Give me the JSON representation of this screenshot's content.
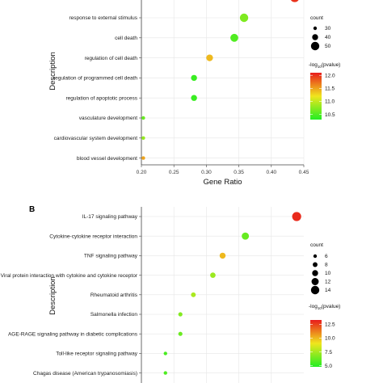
{
  "colors": {
    "panel_bg": "#ffffff",
    "grid": "#e6e6e6",
    "axis": "#444444",
    "low": "#22ee22",
    "mid": "#f0e61e",
    "high": "#e81c1c"
  },
  "chart_data": [
    {
      "panel": "",
      "type": "scatter",
      "xlabel": "Gene Ratio",
      "ylabel": "Description",
      "xlim": [
        0.2,
        0.45
      ],
      "xticks": [
        "0.20",
        "0.25",
        "0.30",
        "0.35",
        "0.40",
        "0.45"
      ],
      "xtick_values": [
        0.2,
        0.25,
        0.3,
        0.35,
        0.4,
        0.45
      ],
      "categories": [
        "response to external stimulus",
        "cell death",
        "regulation of cell death",
        "regulation of programmed cell death",
        "regulation of apoptotic process",
        "vasculature development",
        "cardiovascular system development",
        "blood vessel development"
      ],
      "gene_ratio": [
        0.358,
        0.343,
        0.305,
        0.281,
        0.281,
        0.203,
        0.203,
        0.203
      ],
      "count": [
        50,
        48,
        43,
        40,
        40,
        29,
        29,
        29
      ],
      "pvalue_log10": [
        10.7,
        10.5,
        11.4,
        10.4,
        10.4,
        10.6,
        10.8,
        11.5
      ],
      "partial_top_point": {
        "gene_ratio": 0.436,
        "count": 53,
        "pvalue_log10": 12.0
      },
      "legend_size": {
        "title": "count",
        "values": [
          30,
          40,
          50
        ]
      },
      "legend_color": {
        "title": "-log10(pvalue)",
        "ticks": [
          12.0,
          11.5,
          11.0,
          10.5
        ],
        "range": [
          10.3,
          12.1
        ]
      }
    },
    {
      "panel": "B",
      "type": "scatter",
      "xlabel": "",
      "ylabel": "Description",
      "xlim": [
        0.2,
        0.45
      ],
      "xticks": [],
      "xtick_values": [],
      "categories": [
        "IL-17 signaling pathway",
        "Cytokine-cytokine receptor interaction",
        "TNF signaling pathway",
        "Viral protein interaction with cytokine and cytokine receptor",
        "Rheumatoid arthritis",
        "Salmonella infection",
        "AGE-RAGE signaling pathway in diabetic complications",
        "Toll-like receptor signaling pathway",
        "Chagas disease (American trypanosomiasis)"
      ],
      "gene_ratio": [
        0.439,
        0.36,
        0.325,
        0.31,
        0.28,
        0.26,
        0.26,
        0.237,
        0.237
      ],
      "count": [
        15,
        12,
        10,
        9,
        8,
        7,
        7,
        6,
        6
      ],
      "pvalue_log10": [
        13.0,
        6.2,
        10.0,
        7.3,
        7.6,
        6.8,
        6.3,
        5.6,
        5.7
      ],
      "legend_size": {
        "title": "count",
        "values": [
          6,
          8,
          10,
          12,
          14
        ]
      },
      "legend_color": {
        "title": "-log10(pvalue)",
        "ticks": [
          12.5,
          10.0,
          7.5,
          5.0
        ],
        "range": [
          4.8,
          13.3
        ]
      }
    }
  ]
}
